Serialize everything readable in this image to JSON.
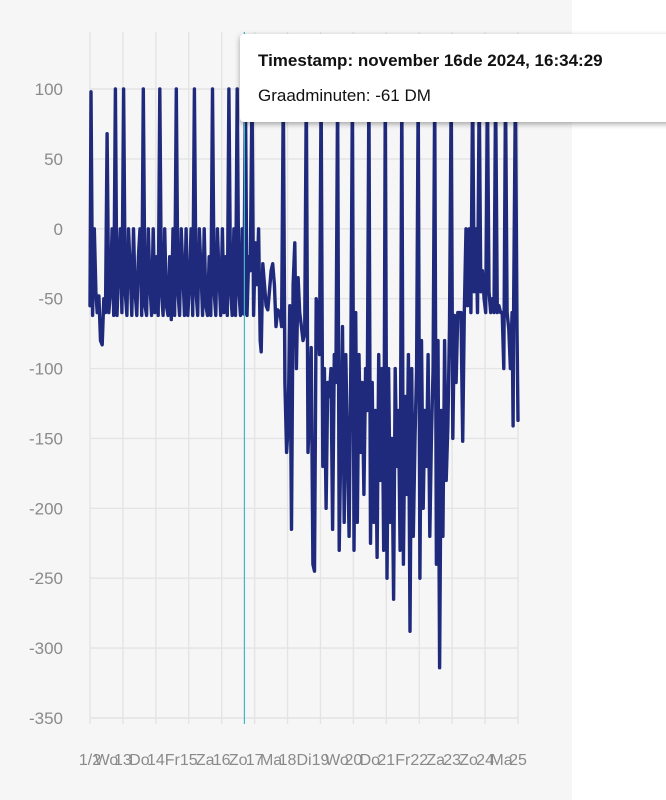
{
  "tooltip": {
    "timestamp_label": "Timestamp:",
    "timestamp_value": "november 16de 2024, 16:34:29",
    "metric_label": "Graadminuten:",
    "metric_value": "-61 DM"
  },
  "colors": {
    "series": "#1f2a7c",
    "cursor": "#3fb8c6",
    "grid": "#e4e4e4"
  },
  "chart_data": {
    "type": "line",
    "title": "",
    "xlabel": "",
    "ylabel": "",
    "ylim": [
      -350,
      100
    ],
    "y_ticks": [
      100,
      50,
      0,
      -50,
      -100,
      -150,
      -200,
      -250,
      -300,
      -350
    ],
    "x_tick_labels": [
      "12",
      "Wo",
      "13",
      "Do",
      "14",
      "Fr",
      "15",
      "Za",
      "16",
      "Zo",
      "17",
      "Ma",
      "18",
      "Di",
      "19",
      "Wo",
      "20",
      "Do",
      "21",
      "Fr",
      "22",
      "Za",
      "23",
      "Zo",
      "24",
      "Ma",
      "25"
    ],
    "x_ticks_drawn": [
      "1/2",
      "Wo",
      "13",
      "Do",
      "14",
      "Fr",
      "15",
      "Za",
      "16",
      "Zo",
      "17",
      "Ma",
      "18",
      "Di",
      "19",
      "Wo",
      "20",
      "Do",
      "21",
      "Fr",
      "22",
      "Za",
      "23",
      "Zo",
      "24",
      "Ma",
      "25"
    ],
    "xlim": [
      12,
      25
    ],
    "cursor_x": 16.69,
    "grid": true,
    "legend": "none",
    "series": [
      {
        "values": [
          [
            12.0,
            -55
          ],
          [
            12.03,
            98
          ],
          [
            12.08,
            -62
          ],
          [
            12.13,
            0
          ],
          [
            12.18,
            -45
          ],
          [
            12.22,
            -60
          ],
          [
            12.27,
            -48
          ],
          [
            12.32,
            -80
          ],
          [
            12.37,
            -83
          ],
          [
            12.42,
            -50
          ],
          [
            12.47,
            -60
          ],
          [
            12.52,
            68
          ],
          [
            12.57,
            -60
          ],
          [
            12.62,
            -45
          ],
          [
            12.67,
            0
          ],
          [
            12.72,
            -62
          ],
          [
            12.77,
            100
          ],
          [
            12.82,
            -62
          ],
          [
            12.87,
            -30
          ],
          [
            12.92,
            0
          ],
          [
            12.97,
            -60
          ],
          [
            13.02,
            100
          ],
          [
            13.07,
            -45
          ],
          [
            13.12,
            -62
          ],
          [
            13.17,
            0
          ],
          [
            13.22,
            -30
          ],
          [
            13.27,
            -62
          ],
          [
            13.32,
            0
          ],
          [
            13.37,
            -45
          ],
          [
            13.42,
            -62
          ],
          [
            13.47,
            -20
          ],
          [
            13.52,
            0
          ],
          [
            13.57,
            -62
          ],
          [
            13.62,
            100
          ],
          [
            13.67,
            -55
          ],
          [
            13.72,
            -62
          ],
          [
            13.77,
            0
          ],
          [
            13.82,
            -40
          ],
          [
            13.87,
            -62
          ],
          [
            13.92,
            0
          ],
          [
            13.97,
            -60
          ],
          [
            14.02,
            -20
          ],
          [
            14.07,
            -62
          ],
          [
            14.12,
            100
          ],
          [
            14.17,
            -45
          ],
          [
            14.22,
            -62
          ],
          [
            14.27,
            0
          ],
          [
            14.32,
            -55
          ],
          [
            14.37,
            -62
          ],
          [
            14.42,
            -20
          ],
          [
            14.47,
            -65
          ],
          [
            14.52,
            0
          ],
          [
            14.57,
            -62
          ],
          [
            14.62,
            100
          ],
          [
            14.67,
            -45
          ],
          [
            14.72,
            -62
          ],
          [
            14.77,
            0
          ],
          [
            14.82,
            -30
          ],
          [
            14.87,
            -62
          ],
          [
            14.92,
            0
          ],
          [
            14.97,
            -62
          ],
          [
            15.02,
            -40
          ],
          [
            15.07,
            0
          ],
          [
            15.12,
            -62
          ],
          [
            15.17,
            100
          ],
          [
            15.22,
            -45
          ],
          [
            15.27,
            -62
          ],
          [
            15.32,
            0
          ],
          [
            15.37,
            -30
          ],
          [
            15.42,
            -62
          ],
          [
            15.47,
            0
          ],
          [
            15.52,
            -55
          ],
          [
            15.57,
            -62
          ],
          [
            15.62,
            -20
          ],
          [
            15.67,
            -62
          ],
          [
            15.72,
            100
          ],
          [
            15.77,
            -45
          ],
          [
            15.82,
            -62
          ],
          [
            15.87,
            0
          ],
          [
            15.92,
            -35
          ],
          [
            15.97,
            -62
          ],
          [
            16.02,
            0
          ],
          [
            16.07,
            -60
          ],
          [
            16.12,
            -20
          ],
          [
            16.17,
            -62
          ],
          [
            16.22,
            100
          ],
          [
            16.27,
            -45
          ],
          [
            16.32,
            -62
          ],
          [
            16.37,
            0
          ],
          [
            16.42,
            -62
          ],
          [
            16.47,
            100
          ],
          [
            16.52,
            -45
          ],
          [
            16.57,
            -62
          ],
          [
            16.62,
            0
          ],
          [
            16.67,
            -61
          ],
          [
            16.72,
            100
          ],
          [
            16.77,
            -62
          ],
          [
            16.82,
            -20
          ],
          [
            16.87,
            -30
          ],
          [
            16.92,
            100
          ],
          [
            16.97,
            -62
          ],
          [
            17.02,
            -10
          ],
          [
            17.07,
            -40
          ],
          [
            17.12,
            0
          ],
          [
            17.17,
            -80
          ],
          [
            17.2,
            -88
          ],
          [
            17.25,
            -25
          ],
          [
            17.3,
            -40
          ],
          [
            17.35,
            -55
          ],
          [
            17.4,
            -58
          ],
          [
            17.45,
            -45
          ],
          [
            17.5,
            -30
          ],
          [
            17.55,
            -25
          ],
          [
            17.6,
            -40
          ],
          [
            17.65,
            -70
          ],
          [
            17.7,
            -58
          ],
          [
            17.77,
            -60
          ],
          [
            17.82,
            -70
          ],
          [
            17.87,
            100
          ],
          [
            17.92,
            -110
          ],
          [
            17.97,
            -160
          ],
          [
            18.02,
            -140
          ],
          [
            18.07,
            -55
          ],
          [
            18.12,
            -215
          ],
          [
            18.17,
            -40
          ],
          [
            18.22,
            -10
          ],
          [
            18.27,
            -100
          ],
          [
            18.32,
            -35
          ],
          [
            18.37,
            -60
          ],
          [
            18.42,
            -70
          ],
          [
            18.47,
            -80
          ],
          [
            18.52,
            -75
          ],
          [
            18.57,
            100
          ],
          [
            18.62,
            -160
          ],
          [
            18.67,
            -130
          ],
          [
            18.72,
            -85
          ],
          [
            18.77,
            -240
          ],
          [
            18.82,
            -245
          ],
          [
            18.87,
            -50
          ],
          [
            18.92,
            -60
          ],
          [
            18.97,
            -90
          ],
          [
            19.02,
            100
          ],
          [
            19.07,
            -170
          ],
          [
            19.12,
            -100
          ],
          [
            19.17,
            -200
          ],
          [
            19.22,
            -110
          ],
          [
            19.27,
            -120
          ],
          [
            19.32,
            -100
          ],
          [
            19.37,
            -215
          ],
          [
            19.42,
            -90
          ],
          [
            19.47,
            -110
          ],
          [
            19.52,
            100
          ],
          [
            19.57,
            -230
          ],
          [
            19.62,
            -150
          ],
          [
            19.67,
            -70
          ],
          [
            19.72,
            -210
          ],
          [
            19.77,
            -90
          ],
          [
            19.82,
            -160
          ],
          [
            19.87,
            -220
          ],
          [
            19.92,
            -100
          ],
          [
            19.97,
            100
          ],
          [
            20.02,
            -230
          ],
          [
            20.07,
            -60
          ],
          [
            20.12,
            -210
          ],
          [
            20.17,
            -90
          ],
          [
            20.22,
            -160
          ],
          [
            20.27,
            -110
          ],
          [
            20.32,
            -190
          ],
          [
            20.37,
            -100
          ],
          [
            20.42,
            -130
          ],
          [
            20.47,
            100
          ],
          [
            20.52,
            -225
          ],
          [
            20.57,
            -110
          ],
          [
            20.62,
            -210
          ],
          [
            20.67,
            -130
          ],
          [
            20.72,
            -235
          ],
          [
            20.77,
            -90
          ],
          [
            20.82,
            -180
          ],
          [
            20.87,
            -100
          ],
          [
            20.92,
            -230
          ],
          [
            20.97,
            100
          ],
          [
            21.02,
            -250
          ],
          [
            21.07,
            -100
          ],
          [
            21.12,
            -210
          ],
          [
            21.17,
            -150
          ],
          [
            21.22,
            -265
          ],
          [
            21.27,
            -100
          ],
          [
            21.32,
            -170
          ],
          [
            21.37,
            -130
          ],
          [
            21.42,
            -230
          ],
          [
            21.47,
            100
          ],
          [
            21.52,
            -240
          ],
          [
            21.57,
            -120
          ],
          [
            21.62,
            -190
          ],
          [
            21.67,
            -90
          ],
          [
            21.72,
            -288
          ],
          [
            21.77,
            -100
          ],
          [
            21.82,
            -220
          ],
          [
            21.87,
            -150
          ],
          [
            21.92,
            -100
          ],
          [
            21.97,
            100
          ],
          [
            22.02,
            -250
          ],
          [
            22.07,
            -80
          ],
          [
            22.12,
            -200
          ],
          [
            22.17,
            -130
          ],
          [
            22.22,
            -170
          ],
          [
            22.27,
            -90
          ],
          [
            22.32,
            -220
          ],
          [
            22.37,
            -150
          ],
          [
            22.42,
            -100
          ],
          [
            22.47,
            100
          ],
          [
            22.52,
            -240
          ],
          [
            22.57,
            -80
          ],
          [
            22.62,
            -314
          ],
          [
            22.67,
            -130
          ],
          [
            22.72,
            -220
          ],
          [
            22.77,
            -80
          ],
          [
            22.82,
            -180
          ],
          [
            22.87,
            -140
          ],
          [
            22.92,
            -70
          ],
          [
            22.97,
            100
          ],
          [
            23.02,
            -150
          ],
          [
            23.07,
            -62
          ],
          [
            23.12,
            -110
          ],
          [
            23.17,
            -60
          ],
          [
            23.22,
            -60
          ],
          [
            23.27,
            -60
          ],
          [
            23.32,
            -152
          ],
          [
            23.37,
            -60
          ],
          [
            23.42,
            0
          ],
          [
            23.47,
            -55
          ],
          [
            23.52,
            0
          ],
          [
            23.57,
            -60
          ],
          [
            23.62,
            100
          ],
          [
            23.67,
            -45
          ],
          [
            23.72,
            0
          ],
          [
            23.77,
            -60
          ],
          [
            23.82,
            100
          ],
          [
            23.87,
            -45
          ],
          [
            23.92,
            -30
          ],
          [
            23.97,
            -50
          ],
          [
            24.02,
            -60
          ],
          [
            24.07,
            100
          ],
          [
            24.12,
            -45
          ],
          [
            24.17,
            -60
          ],
          [
            24.22,
            -50
          ],
          [
            24.27,
            -60
          ],
          [
            24.32,
            100
          ],
          [
            24.37,
            -60
          ],
          [
            24.42,
            -55
          ],
          [
            24.47,
            -60
          ],
          [
            24.52,
            -60
          ],
          [
            24.57,
            -100
          ],
          [
            24.62,
            100
          ],
          [
            24.67,
            -60
          ],
          [
            24.72,
            -72
          ],
          [
            24.77,
            -100
          ],
          [
            24.82,
            -60
          ],
          [
            24.85,
            -141
          ],
          [
            24.87,
            -50
          ],
          [
            24.92,
            100
          ],
          [
            24.97,
            -72
          ],
          [
            25.0,
            -137
          ]
        ]
      }
    ]
  }
}
